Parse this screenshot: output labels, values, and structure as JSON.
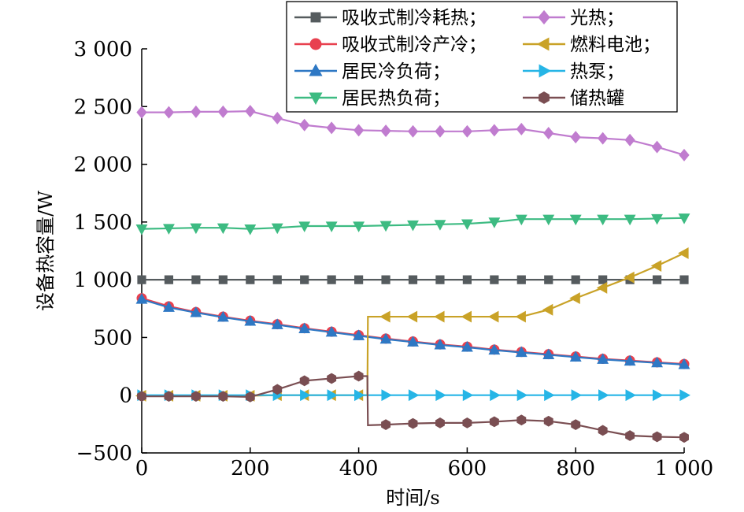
{
  "chart_data": {
    "type": "line",
    "xlabel": "时间/s",
    "ylabel": "设备热容量/W",
    "xlim": [
      0,
      1000
    ],
    "ylim": [
      -500,
      3000
    ],
    "xticks": [
      0,
      200,
      400,
      600,
      800,
      1000
    ],
    "xtick_labels": [
      "0",
      "200",
      "400",
      "600",
      "800",
      "1 000"
    ],
    "yticks": [
      -500,
      0,
      500,
      1000,
      1500,
      2000,
      2500,
      3000
    ],
    "ytick_labels": [
      "−500",
      "0",
      "500",
      "1 000",
      "1 500",
      "2 000",
      "2 500",
      "3 000"
    ],
    "grid": false,
    "legend_position": "top-right",
    "series": [
      {
        "name": "吸收式制冷耗热；",
        "color": "#555b5e",
        "marker": "square",
        "x": [
          0,
          50,
          100,
          150,
          200,
          250,
          300,
          350,
          400,
          450,
          500,
          550,
          600,
          650,
          700,
          750,
          800,
          850,
          900,
          950,
          1000
        ],
        "y": [
          1000,
          1000,
          1000,
          1000,
          1000,
          1000,
          1000,
          1000,
          1000,
          1000,
          1000,
          1000,
          1000,
          1000,
          1000,
          1000,
          1000,
          1000,
          1000,
          1000,
          1000
        ]
      },
      {
        "name": "吸收式制冷产冷；",
        "color": "#e8414f",
        "marker": "circle",
        "x": [
          0,
          50,
          100,
          150,
          200,
          250,
          300,
          350,
          400,
          450,
          500,
          550,
          600,
          650,
          700,
          750,
          800,
          850,
          900,
          950,
          1000
        ],
        "y": [
          840,
          770,
          720,
          680,
          645,
          615,
          580,
          550,
          520,
          490,
          465,
          440,
          420,
          395,
          375,
          355,
          335,
          315,
          300,
          285,
          270
        ]
      },
      {
        "name": "居民冷负荷；",
        "color": "#2e78c4",
        "marker": "triangle-up",
        "x": [
          0,
          50,
          100,
          150,
          200,
          250,
          300,
          350,
          400,
          450,
          500,
          550,
          600,
          650,
          700,
          750,
          800,
          850,
          900,
          950,
          1000
        ],
        "y": [
          830,
          760,
          715,
          675,
          640,
          610,
          575,
          545,
          515,
          485,
          460,
          435,
          415,
          390,
          370,
          350,
          330,
          310,
          295,
          280,
          265
        ]
      },
      {
        "name": "居民热负荷；",
        "color": "#3dbb82",
        "marker": "triangle-down",
        "x": [
          0,
          50,
          100,
          150,
          200,
          250,
          300,
          350,
          400,
          450,
          500,
          550,
          600,
          650,
          700,
          750,
          800,
          850,
          900,
          950,
          1000
        ],
        "y": [
          1440,
          1445,
          1450,
          1450,
          1440,
          1450,
          1465,
          1465,
          1465,
          1470,
          1475,
          1480,
          1485,
          1500,
          1525,
          1525,
          1525,
          1525,
          1525,
          1530,
          1535
        ]
      },
      {
        "name": "光热；",
        "color": "#c07ccf",
        "marker": "diamond",
        "x": [
          0,
          50,
          100,
          150,
          200,
          250,
          300,
          350,
          400,
          450,
          500,
          550,
          600,
          650,
          700,
          750,
          800,
          850,
          900,
          950,
          1000
        ],
        "y": [
          2450,
          2450,
          2455,
          2455,
          2460,
          2400,
          2340,
          2315,
          2295,
          2290,
          2285,
          2285,
          2285,
          2295,
          2305,
          2270,
          2235,
          2225,
          2210,
          2150,
          2080
        ]
      },
      {
        "name": "燃料电池；",
        "color": "#c9a227",
        "marker": "triangle-left",
        "x": [
          0,
          50,
          100,
          150,
          200,
          250,
          300,
          350,
          400,
          416,
          417,
          450,
          500,
          550,
          600,
          650,
          700,
          750,
          800,
          850,
          900,
          950,
          1000
        ],
        "y": [
          -5,
          -5,
          -5,
          -5,
          -5,
          0,
          0,
          0,
          0,
          0,
          680,
          680,
          680,
          680,
          680,
          680,
          680,
          740,
          840,
          930,
          1020,
          1120,
          1230
        ],
        "marker_x": [
          0,
          50,
          100,
          150,
          200,
          250,
          300,
          350,
          400,
          450,
          500,
          550,
          600,
          650,
          700,
          750,
          800,
          850,
          900,
          950,
          1000
        ]
      },
      {
        "name": "热泵；",
        "color": "#26b5e6",
        "marker": "triangle-right",
        "x": [
          0,
          50,
          100,
          150,
          200,
          250,
          300,
          350,
          400,
          450,
          500,
          550,
          600,
          650,
          700,
          750,
          800,
          850,
          900,
          950,
          1000
        ],
        "y": [
          0,
          0,
          0,
          0,
          0,
          0,
          0,
          0,
          0,
          0,
          0,
          0,
          0,
          0,
          0,
          0,
          0,
          0,
          0,
          0,
          0
        ]
      },
      {
        "name": "储热罐",
        "color": "#7a4e52",
        "marker": "hexagon",
        "x": [
          0,
          50,
          100,
          150,
          200,
          250,
          300,
          350,
          400,
          416,
          417,
          450,
          500,
          550,
          600,
          650,
          700,
          750,
          800,
          850,
          900,
          950,
          1000
        ],
        "y": [
          -10,
          -10,
          -10,
          -10,
          -15,
          50,
          125,
          145,
          165,
          165,
          -260,
          -255,
          -245,
          -240,
          -240,
          -230,
          -215,
          -225,
          -255,
          -305,
          -350,
          -360,
          -365
        ],
        "marker_x": [
          0,
          50,
          100,
          150,
          200,
          250,
          300,
          350,
          400,
          450,
          500,
          550,
          600,
          650,
          700,
          750,
          800,
          850,
          900,
          950,
          1000
        ]
      }
    ]
  }
}
